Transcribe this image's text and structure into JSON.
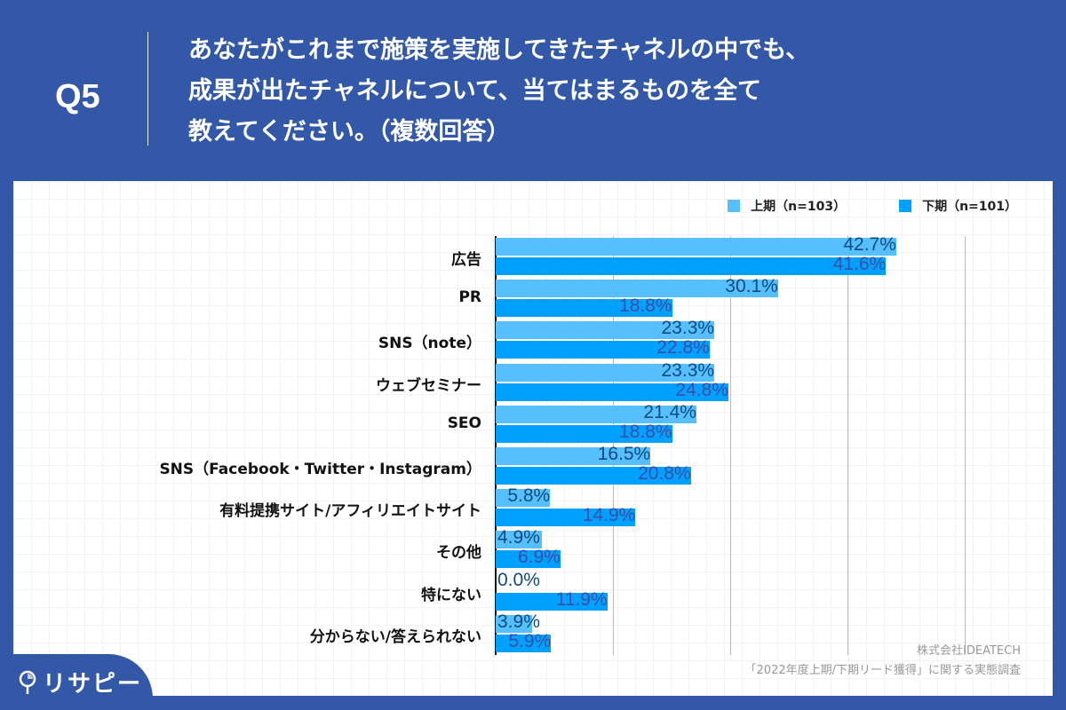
{
  "header": {
    "question_number": "Q5",
    "question_lines": [
      "あなたがこれまで施策を実施してきたチャネルの中でも、",
      "成果が出たチャネルについて、当てはまるものを全て",
      "教えてください。（複数回答）"
    ]
  },
  "legend": {
    "series1": "上期（n=103）",
    "series2": "下期（n=101）"
  },
  "colors": {
    "background": "#3358a8",
    "series1": "#56c0ff",
    "series2": "#00a0ff",
    "label1": "#0f4a80",
    "label2": "#3a4fa3"
  },
  "footer": {
    "logo_text": "リサピー",
    "company": "株式会社IDEATECH",
    "survey": "「2022年度上期/下期リード獲得」に関する実態調査"
  },
  "chart_data": {
    "type": "bar",
    "orientation": "horizontal",
    "title": "あなたがこれまで施策を実施してきたチャネルの中でも、成果が出たチャネルについて、当てはまるものを全て教えてください。（複数回答）",
    "xlabel": "",
    "ylabel": "",
    "xlim": [
      0,
      50
    ],
    "grid": true,
    "legend_position": "top-right",
    "categories": [
      "広告",
      "PR",
      "SNS（note）",
      "ウェブセミナー",
      "SEO",
      "SNS（Facebook・Twitter・Instagram）",
      "有料提携サイト/アフィリエイトサイト",
      "その他",
      "特にない",
      "分からない/答えられない"
    ],
    "series": [
      {
        "name": "上期（n=103）",
        "values": [
          42.7,
          30.1,
          23.3,
          23.3,
          21.4,
          16.5,
          5.8,
          4.9,
          0.0,
          3.9
        ]
      },
      {
        "name": "下期（n=101）",
        "values": [
          41.6,
          18.8,
          22.8,
          24.8,
          18.8,
          20.8,
          14.9,
          6.9,
          11.9,
          5.9
        ]
      }
    ]
  }
}
